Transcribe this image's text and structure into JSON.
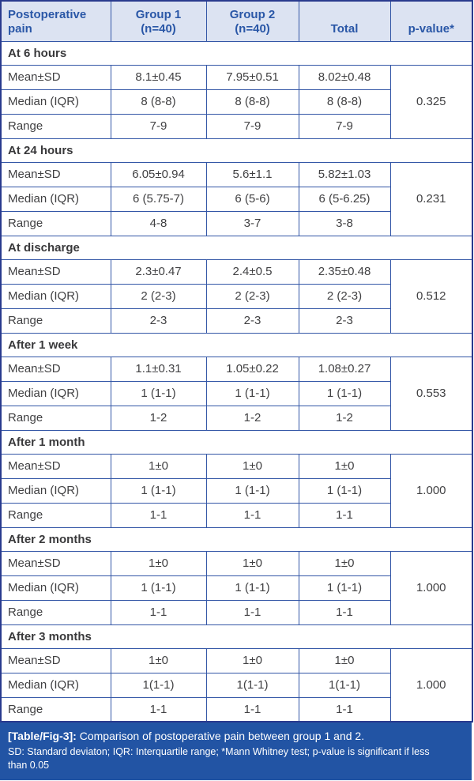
{
  "colors": {
    "header_bg": "#dce3f2",
    "header_text": "#2a57a7",
    "grid_border": "#3356a6",
    "outer_border": "#293a8e",
    "body_text": "#414143",
    "section_text": "#39393b",
    "caption_bar_bg": "#2254a4",
    "caption_text": "#ffffff"
  },
  "table": {
    "header": [
      "Postoperative\npain",
      "Group 1\n(n=40)",
      "Group 2\n(n=40)",
      "Total",
      "p-value*"
    ],
    "sections": [
      {
        "title": "At 6 hours",
        "p_value": "0.325",
        "rows": [
          [
            "Mean±SD",
            "8.1±0.45",
            "7.95±0.51",
            "8.02±0.48"
          ],
          [
            "Median (IQR)",
            "8 (8-8)",
            "8 (8-8)",
            "8 (8-8)"
          ],
          [
            "Range",
            "7-9",
            "7-9",
            "7-9"
          ]
        ]
      },
      {
        "title": "At 24 hours",
        "p_value": "0.231",
        "rows": [
          [
            "Mean±SD",
            "6.05±0.94",
            "5.6±1.1",
            "5.82±1.03"
          ],
          [
            "Median (IQR)",
            "6 (5.75-7)",
            "6 (5-6)",
            "6 (5-6.25)"
          ],
          [
            "Range",
            "4-8",
            "3-7",
            "3-8"
          ]
        ]
      },
      {
        "title": "At discharge",
        "p_value": "0.512",
        "rows": [
          [
            "Mean±SD",
            "2.3±0.47",
            "2.4±0.5",
            "2.35±0.48"
          ],
          [
            "Median (IQR)",
            "2 (2-3)",
            "2 (2-3)",
            "2 (2-3)"
          ],
          [
            "Range",
            "2-3",
            "2-3",
            "2-3"
          ]
        ]
      },
      {
        "title": "After 1 week",
        "p_value": "0.553",
        "rows": [
          [
            "Mean±SD",
            "1.1±0.31",
            "1.05±0.22",
            "1.08±0.27"
          ],
          [
            "Median (IQR)",
            "1 (1-1)",
            "1 (1-1)",
            "1 (1-1)"
          ],
          [
            "Range",
            "1-2",
            "1-2",
            "1-2"
          ]
        ]
      },
      {
        "title": "After 1 month",
        "p_value": "1.000",
        "rows": [
          [
            "Mean±SD",
            "1±0",
            "1±0",
            "1±0"
          ],
          [
            "Median (IQR)",
            "1 (1-1)",
            "1 (1-1)",
            "1 (1-1)"
          ],
          [
            "Range",
            "1-1",
            "1-1",
            "1-1"
          ]
        ]
      },
      {
        "title": "After 2 months",
        "p_value": "1.000",
        "rows": [
          [
            "Mean±SD",
            "1±0",
            "1±0",
            "1±0"
          ],
          [
            "Median (IQR)",
            "1 (1-1)",
            "1 (1-1)",
            "1 (1-1)"
          ],
          [
            "Range",
            "1-1",
            "1-1",
            "1-1"
          ]
        ]
      },
      {
        "title": "After 3 months",
        "p_value": "1.000",
        "rows": [
          [
            "Mean±SD",
            "1±0",
            "1±0",
            "1±0"
          ],
          [
            "Median (IQR)",
            "1(1-1)",
            "1(1-1)",
            "1(1-1)"
          ],
          [
            "Range",
            "1-1",
            "1-1",
            "1-1"
          ]
        ]
      }
    ]
  },
  "footer": {
    "caption_label": "[Table/Fig-3]:",
    "caption_text": " Comparison of postoperative pain between group 1 and 2.",
    "note": "SD: Standard deviaton; IQR: Interquartile range; *Mann Whitney test; p-value is significant if less\nthan 0.05"
  }
}
